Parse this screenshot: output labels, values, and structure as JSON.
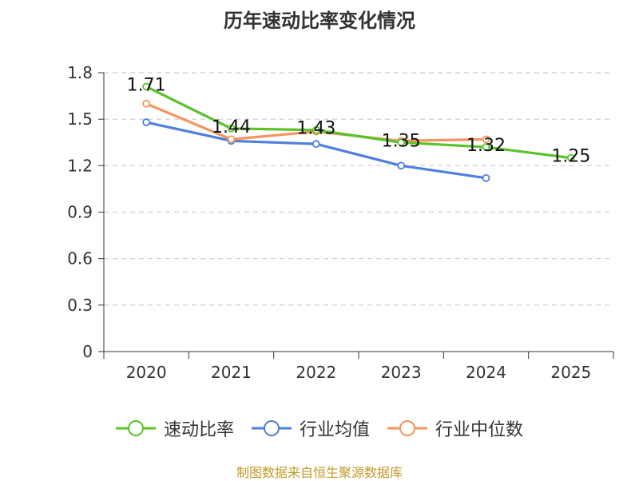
{
  "chart_data": {
    "type": "line",
    "title": "历年速动比率变化情况",
    "categories": [
      "2020",
      "2021",
      "2022",
      "2023",
      "2024",
      "2025"
    ],
    "ylim": [
      0,
      1.8
    ],
    "yticks": [
      "0",
      "0.3",
      "0.6",
      "0.9",
      "1.2",
      "1.5",
      "1.8"
    ],
    "grid": true,
    "legend_position": "bottom",
    "series": [
      {
        "name": "速动比率",
        "color": "#5ac22b",
        "values": [
          1.71,
          1.44,
          1.43,
          1.35,
          1.32,
          1.25
        ],
        "labels": [
          "1.71",
          "1.44",
          "1.43",
          "1.35",
          "1.32",
          "1.25"
        ]
      },
      {
        "name": "行业均值",
        "color": "#4f7fdc",
        "values": [
          1.48,
          1.36,
          1.34,
          1.2,
          1.12,
          null
        ]
      },
      {
        "name": "行业中位数",
        "color": "#f59460",
        "values": [
          1.6,
          1.37,
          1.42,
          1.36,
          1.37,
          null
        ]
      }
    ]
  },
  "footer": {
    "source": "制图数据来自恒生聚源数据库"
  }
}
